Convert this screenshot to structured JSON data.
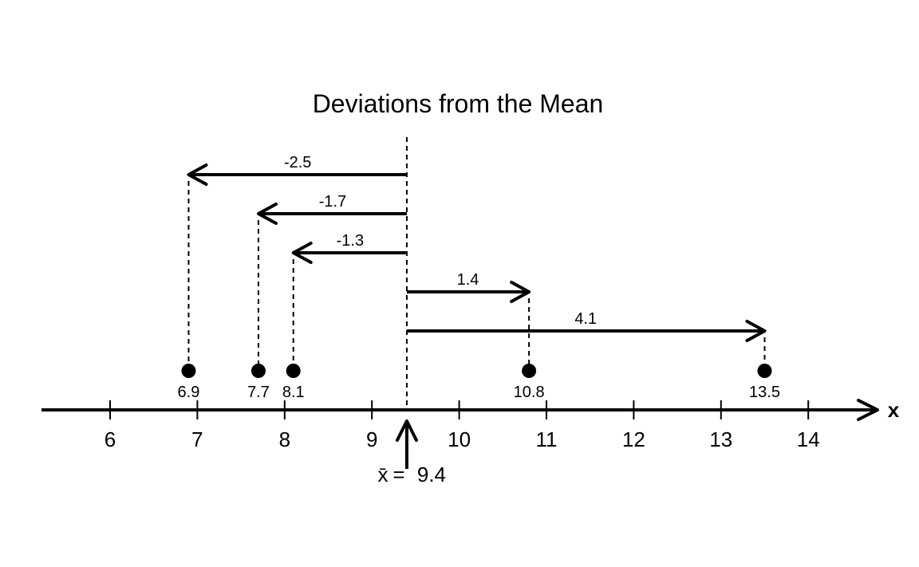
{
  "chart_data": {
    "type": "dot-plot",
    "title": "Deviations from the Mean",
    "x_axis": {
      "label": "x",
      "range": [
        5.2,
        14.8
      ],
      "ticks": [
        6,
        7,
        8,
        9,
        10,
        11,
        12,
        13,
        14
      ],
      "tick_labels": [
        "6",
        "7",
        "8",
        "9",
        "10",
        "11",
        "12",
        "13",
        "14"
      ]
    },
    "mean": {
      "value": 9.4,
      "symbol": "x̄",
      "equals": "=",
      "label": "9.4"
    },
    "points": [
      {
        "value": 6.9,
        "label": "6.9",
        "deviation": -2.5,
        "deviation_label": "-2.5"
      },
      {
        "value": 7.7,
        "label": "7.7",
        "deviation": -1.7,
        "deviation_label": "-1.7"
      },
      {
        "value": 8.1,
        "label": "8.1",
        "deviation": -1.3,
        "deviation_label": "-1.3"
      },
      {
        "value": 10.8,
        "label": "10.8",
        "deviation": 1.4,
        "deviation_label": "1.4"
      },
      {
        "value": 13.5,
        "label": "13.5",
        "deviation": 4.1,
        "deviation_label": "4.1"
      }
    ],
    "colors": {
      "ink": "#000000",
      "background": "#ffffff"
    }
  }
}
